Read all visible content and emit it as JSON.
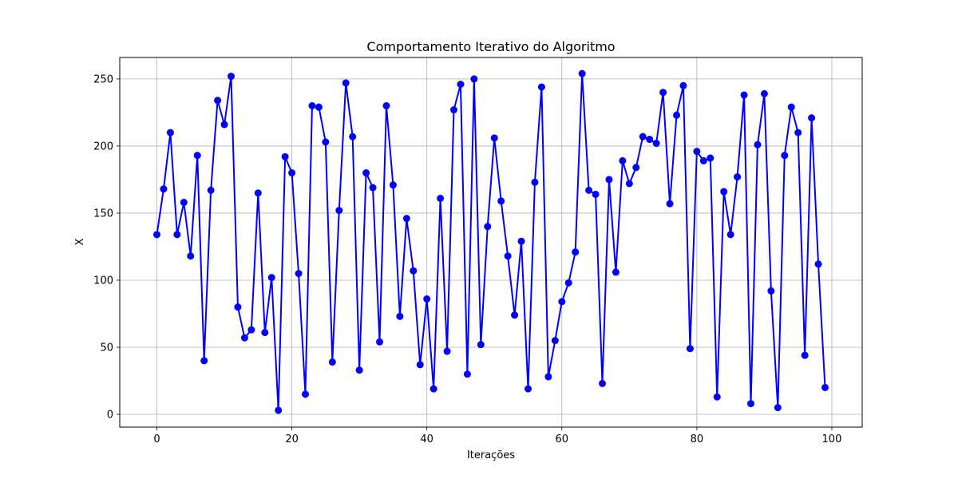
{
  "chart_data": {
    "type": "line",
    "title": "Comportamento Iterativo do Algoritmo",
    "xlabel": "Iterações",
    "ylabel": "X",
    "xlim": [
      -5.5,
      104.5
    ],
    "ylim": [
      -9.5,
      266
    ],
    "xticks": [
      0,
      20,
      40,
      60,
      80,
      100
    ],
    "yticks": [
      0,
      50,
      100,
      150,
      200,
      250
    ],
    "grid": true,
    "series": [
      {
        "color": "#0000ff",
        "marker": "circle",
        "x": [
          0,
          1,
          2,
          3,
          4,
          5,
          6,
          7,
          8,
          9,
          10,
          11,
          12,
          13,
          14,
          15,
          16,
          17,
          18,
          19,
          20,
          21,
          22,
          23,
          24,
          25,
          26,
          27,
          28,
          29,
          30,
          31,
          32,
          33,
          34,
          35,
          36,
          37,
          38,
          39,
          40,
          41,
          42,
          43,
          44,
          45,
          46,
          47,
          48,
          49,
          50,
          51,
          52,
          53,
          54,
          55,
          56,
          57,
          58,
          59,
          60,
          61,
          62,
          63,
          64,
          65,
          66,
          67,
          68,
          69,
          70,
          71,
          72,
          73,
          74,
          75,
          76,
          77,
          78,
          79,
          80,
          81,
          82,
          83,
          84,
          85,
          86,
          87,
          88,
          89,
          90,
          91,
          92,
          93,
          94,
          95,
          96,
          97,
          98,
          99
        ],
        "values": [
          134,
          168,
          210,
          134,
          158,
          118,
          193,
          40,
          167,
          234,
          216,
          252,
          80,
          57,
          63,
          165,
          61,
          102,
          3,
          192,
          180,
          105,
          15,
          230,
          229,
          203,
          39,
          152,
          247,
          207,
          33,
          180,
          169,
          54,
          230,
          171,
          73,
          146,
          107,
          37,
          86,
          19,
          161,
          47,
          227,
          246,
          30,
          250,
          52,
          140,
          206,
          159,
          118,
          74,
          129,
          19,
          173,
          244,
          28,
          55,
          84,
          98,
          121,
          254,
          167,
          164,
          23,
          175,
          106,
          189,
          172,
          184,
          207,
          205,
          202,
          240,
          157,
          223,
          245,
          49,
          196,
          189,
          191,
          13,
          166,
          134,
          177,
          238,
          8,
          201,
          239,
          92,
          5,
          193,
          229,
          210,
          44,
          221,
          112,
          20
        ]
      }
    ]
  }
}
